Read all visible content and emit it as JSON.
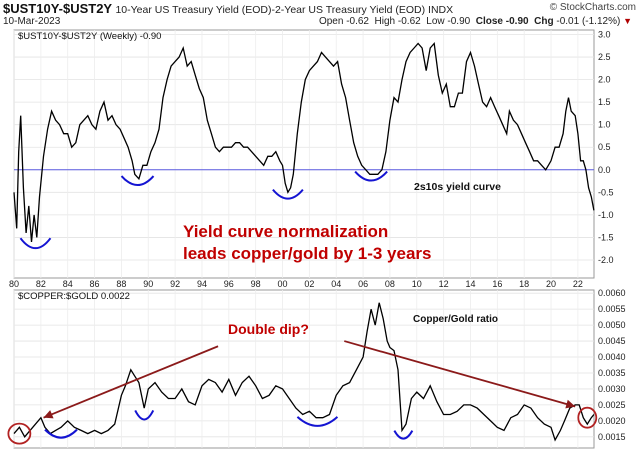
{
  "header": {
    "symbol": "$UST10Y-$UST2Y",
    "description": "10-Year US Treasury Yield (EOD)-2-Year US Treasury Yield (EOD)  INDX",
    "date": "10-Mar-2023",
    "brand": "© StockCharts.com",
    "ohlc": [
      {
        "label": "Open",
        "value": "-0.62"
      },
      {
        "label": "High",
        "value": "-0.62"
      },
      {
        "label": "Low",
        "value": "-0.90"
      },
      {
        "label": "Close",
        "value": "-0.90"
      },
      {
        "label": "Chg",
        "value": "-0.01 (-1.12%)"
      }
    ],
    "down_glyph": "▼"
  },
  "chart_data": [
    {
      "type": "line",
      "title": "$UST10Y-$UST2Y (Weekly) -0.90",
      "label": "2s10s yield curve",
      "annotation": "Yield curve normalization\nleads copper/gold by 1-3 years",
      "annotation_color": "#c00000",
      "line_color": "#000000",
      "zero_line_color": "#5a5ae0",
      "ylim": [
        -2.4,
        3.1
      ],
      "yticks": [
        "3.0",
        "2.5",
        "2.0",
        "1.5",
        "1.0",
        "0.5",
        "0.0",
        "-0.5",
        "-1.0",
        "-1.5",
        "-2.0"
      ],
      "xlim": [
        1980,
        2023.2
      ],
      "points": [
        [
          1980.0,
          -0.5
        ],
        [
          1980.2,
          -1.3
        ],
        [
          1980.35,
          0.4
        ],
        [
          1980.5,
          1.2
        ],
        [
          1980.7,
          -0.4
        ],
        [
          1980.9,
          -1.4
        ],
        [
          1981.1,
          -0.8
        ],
        [
          1981.3,
          -1.6
        ],
        [
          1981.5,
          -1.0
        ],
        [
          1981.7,
          -1.5
        ],
        [
          1981.9,
          -0.6
        ],
        [
          1982.2,
          0.3
        ],
        [
          1982.5,
          0.9
        ],
        [
          1982.8,
          1.3
        ],
        [
          1983.1,
          1.1
        ],
        [
          1983.4,
          1.0
        ],
        [
          1983.7,
          0.8
        ],
        [
          1984.0,
          0.8
        ],
        [
          1984.3,
          0.5
        ],
        [
          1984.6,
          0.6
        ],
        [
          1984.9,
          1.0
        ],
        [
          1985.2,
          1.1
        ],
        [
          1985.5,
          1.2
        ],
        [
          1985.8,
          1.0
        ],
        [
          1986.1,
          0.9
        ],
        [
          1986.4,
          1.3
        ],
        [
          1986.7,
          1.5
        ],
        [
          1987.0,
          1.1
        ],
        [
          1987.3,
          1.2
        ],
        [
          1987.6,
          1.0
        ],
        [
          1987.9,
          0.9
        ],
        [
          1988.2,
          0.7
        ],
        [
          1988.5,
          0.5
        ],
        [
          1988.8,
          0.2
        ],
        [
          1989.0,
          -0.1
        ],
        [
          1989.3,
          -0.2
        ],
        [
          1989.6,
          0.1
        ],
        [
          1989.9,
          0.1
        ],
        [
          1990.2,
          0.4
        ],
        [
          1990.5,
          0.6
        ],
        [
          1990.8,
          0.9
        ],
        [
          1991.1,
          1.6
        ],
        [
          1991.4,
          2.0
        ],
        [
          1991.7,
          2.3
        ],
        [
          1992.0,
          2.4
        ],
        [
          1992.3,
          2.5
        ],
        [
          1992.6,
          2.7
        ],
        [
          1992.9,
          2.3
        ],
        [
          1993.2,
          2.4
        ],
        [
          1993.5,
          2.1
        ],
        [
          1993.8,
          1.8
        ],
        [
          1994.1,
          1.6
        ],
        [
          1994.4,
          1.1
        ],
        [
          1994.7,
          0.8
        ],
        [
          1995.0,
          0.5
        ],
        [
          1995.3,
          0.4
        ],
        [
          1995.6,
          0.5
        ],
        [
          1995.9,
          0.5
        ],
        [
          1996.2,
          0.5
        ],
        [
          1996.5,
          0.6
        ],
        [
          1996.8,
          0.6
        ],
        [
          1997.1,
          0.5
        ],
        [
          1997.4,
          0.5
        ],
        [
          1997.7,
          0.4
        ],
        [
          1998.0,
          0.3
        ],
        [
          1998.3,
          0.2
        ],
        [
          1998.6,
          0.1
        ],
        [
          1998.9,
          0.3
        ],
        [
          1999.2,
          0.3
        ],
        [
          1999.5,
          0.4
        ],
        [
          1999.8,
          0.2
        ],
        [
          2000.0,
          0.1
        ],
        [
          2000.2,
          -0.3
        ],
        [
          2000.4,
          -0.5
        ],
        [
          2000.6,
          -0.4
        ],
        [
          2000.8,
          -0.1
        ],
        [
          2001.1,
          0.8
        ],
        [
          2001.4,
          1.5
        ],
        [
          2001.7,
          2.0
        ],
        [
          2002.0,
          2.2
        ],
        [
          2002.3,
          2.3
        ],
        [
          2002.6,
          2.4
        ],
        [
          2002.9,
          2.6
        ],
        [
          2003.2,
          2.5
        ],
        [
          2003.5,
          2.4
        ],
        [
          2003.8,
          2.3
        ],
        [
          2004.1,
          2.4
        ],
        [
          2004.4,
          1.9
        ],
        [
          2004.7,
          1.6
        ],
        [
          2005.0,
          1.1
        ],
        [
          2005.3,
          0.6
        ],
        [
          2005.6,
          0.3
        ],
        [
          2005.9,
          0.1
        ],
        [
          2006.2,
          0.0
        ],
        [
          2006.5,
          -0.1
        ],
        [
          2006.8,
          -0.1
        ],
        [
          2007.1,
          -0.1
        ],
        [
          2007.4,
          0.0
        ],
        [
          2007.7,
          0.4
        ],
        [
          2008.0,
          1.1
        ],
        [
          2008.3,
          1.6
        ],
        [
          2008.6,
          1.5
        ],
        [
          2008.9,
          2.0
        ],
        [
          2009.2,
          2.4
        ],
        [
          2009.5,
          2.6
        ],
        [
          2009.8,
          2.7
        ],
        [
          2010.1,
          2.8
        ],
        [
          2010.4,
          2.7
        ],
        [
          2010.7,
          2.2
        ],
        [
          2011.0,
          2.7
        ],
        [
          2011.3,
          2.8
        ],
        [
          2011.6,
          2.1
        ],
        [
          2011.9,
          1.7
        ],
        [
          2012.2,
          1.9
        ],
        [
          2012.5,
          1.4
        ],
        [
          2012.8,
          1.4
        ],
        [
          2013.1,
          1.7
        ],
        [
          2013.4,
          1.7
        ],
        [
          2013.7,
          2.4
        ],
        [
          2014.0,
          2.6
        ],
        [
          2014.3,
          2.3
        ],
        [
          2014.6,
          1.9
        ],
        [
          2014.9,
          1.5
        ],
        [
          2015.2,
          1.4
        ],
        [
          2015.5,
          1.6
        ],
        [
          2015.8,
          1.4
        ],
        [
          2016.1,
          1.2
        ],
        [
          2016.4,
          1.0
        ],
        [
          2016.7,
          0.8
        ],
        [
          2016.9,
          1.3
        ],
        [
          2017.2,
          1.1
        ],
        [
          2017.5,
          1.0
        ],
        [
          2017.8,
          0.8
        ],
        [
          2018.1,
          0.6
        ],
        [
          2018.4,
          0.4
        ],
        [
          2018.7,
          0.2
        ],
        [
          2019.0,
          0.2
        ],
        [
          2019.3,
          0.1
        ],
        [
          2019.6,
          0.0
        ],
        [
          2019.8,
          0.1
        ],
        [
          2020.0,
          0.2
        ],
        [
          2020.3,
          0.5
        ],
        [
          2020.6,
          0.5
        ],
        [
          2020.9,
          0.8
        ],
        [
          2021.1,
          1.3
        ],
        [
          2021.3,
          1.6
        ],
        [
          2021.5,
          1.3
        ],
        [
          2021.8,
          1.2
        ],
        [
          2022.0,
          0.8
        ],
        [
          2022.2,
          0.2
        ],
        [
          2022.4,
          0.2
        ],
        [
          2022.6,
          0.0
        ],
        [
          2022.8,
          -0.4
        ],
        [
          2023.0,
          -0.6
        ],
        [
          2023.19,
          -0.9
        ]
      ]
    },
    {
      "type": "line",
      "title": "$COPPER:$GOLD 0.0022",
      "label": "Copper/Gold ratio",
      "annotation": "Double dip?",
      "annotation_color": "#c00000",
      "line_color": "#000000",
      "ylim": [
        0.00115,
        0.0061
      ],
      "yticks": [
        "0.0060",
        "0.0055",
        "0.0050",
        "0.0045",
        "0.0040",
        "0.0035",
        "0.0030",
        "0.0025",
        "0.0020",
        "0.0015"
      ],
      "xlim": [
        1980,
        2023.2
      ],
      "xticks": [
        "80",
        "82",
        "84",
        "86",
        "88",
        "90",
        "92",
        "94",
        "96",
        "98",
        "00",
        "02",
        "04",
        "06",
        "08",
        "10",
        "12",
        "14",
        "16",
        "18",
        "20",
        "22"
      ],
      "points": [
        [
          1980.0,
          0.0016
        ],
        [
          1980.4,
          0.0018
        ],
        [
          1980.8,
          0.0015
        ],
        [
          1981.2,
          0.0017
        ],
        [
          1981.6,
          0.0019
        ],
        [
          1982.0,
          0.0021
        ],
        [
          1982.3,
          0.0018
        ],
        [
          1982.7,
          0.0016
        ],
        [
          1983.1,
          0.0017
        ],
        [
          1983.5,
          0.0018
        ],
        [
          1984.0,
          0.002
        ],
        [
          1984.5,
          0.0018
        ],
        [
          1985.0,
          0.0017
        ],
        [
          1985.5,
          0.0016
        ],
        [
          1986.0,
          0.0017
        ],
        [
          1986.5,
          0.0016
        ],
        [
          1987.0,
          0.0017
        ],
        [
          1987.5,
          0.0019
        ],
        [
          1988.0,
          0.0028
        ],
        [
          1988.3,
          0.0031
        ],
        [
          1988.7,
          0.0036
        ],
        [
          1989.0,
          0.0034
        ],
        [
          1989.3,
          0.0032
        ],
        [
          1989.7,
          0.0024
        ],
        [
          1990.0,
          0.003
        ],
        [
          1990.5,
          0.0032
        ],
        [
          1991.0,
          0.0029
        ],
        [
          1991.5,
          0.0027
        ],
        [
          1992.0,
          0.0027
        ],
        [
          1992.5,
          0.003
        ],
        [
          1993.0,
          0.0026
        ],
        [
          1993.5,
          0.0025
        ],
        [
          1994.0,
          0.0031
        ],
        [
          1994.5,
          0.0033
        ],
        [
          1995.0,
          0.0032
        ],
        [
          1995.5,
          0.0029
        ],
        [
          1996.0,
          0.0033
        ],
        [
          1996.5,
          0.0028
        ],
        [
          1997.0,
          0.0032
        ],
        [
          1997.5,
          0.0034
        ],
        [
          1998.0,
          0.0031
        ],
        [
          1998.5,
          0.0027
        ],
        [
          1999.0,
          0.0028
        ],
        [
          1999.5,
          0.0031
        ],
        [
          2000.0,
          0.003
        ],
        [
          2000.5,
          0.0027
        ],
        [
          2001.0,
          0.0024
        ],
        [
          2001.5,
          0.0022
        ],
        [
          2002.0,
          0.0023
        ],
        [
          2002.5,
          0.0021
        ],
        [
          2003.0,
          0.0021
        ],
        [
          2003.5,
          0.0022
        ],
        [
          2004.0,
          0.0028
        ],
        [
          2004.5,
          0.0031
        ],
        [
          2005.0,
          0.0032
        ],
        [
          2005.5,
          0.0036
        ],
        [
          2006.0,
          0.004
        ],
        [
          2006.3,
          0.0048
        ],
        [
          2006.6,
          0.0055
        ],
        [
          2006.9,
          0.005
        ],
        [
          2007.2,
          0.0057
        ],
        [
          2007.5,
          0.0052
        ],
        [
          2007.8,
          0.0045
        ],
        [
          2008.0,
          0.0043
        ],
        [
          2008.3,
          0.0042
        ],
        [
          2008.6,
          0.0036
        ],
        [
          2008.9,
          0.0017
        ],
        [
          2009.2,
          0.0019
        ],
        [
          2009.6,
          0.0027
        ],
        [
          2010.0,
          0.0029
        ],
        [
          2010.5,
          0.0027
        ],
        [
          2011.0,
          0.0031
        ],
        [
          2011.5,
          0.0026
        ],
        [
          2012.0,
          0.0022
        ],
        [
          2012.5,
          0.0022
        ],
        [
          2013.0,
          0.0023
        ],
        [
          2013.5,
          0.0025
        ],
        [
          2014.0,
          0.0025
        ],
        [
          2014.5,
          0.0024
        ],
        [
          2015.0,
          0.0022
        ],
        [
          2015.5,
          0.002
        ],
        [
          2016.0,
          0.0018
        ],
        [
          2016.5,
          0.0017
        ],
        [
          2017.0,
          0.0021
        ],
        [
          2017.5,
          0.0022
        ],
        [
          2018.0,
          0.0025
        ],
        [
          2018.5,
          0.0024
        ],
        [
          2019.0,
          0.0021
        ],
        [
          2019.5,
          0.0019
        ],
        [
          2020.0,
          0.0018
        ],
        [
          2020.3,
          0.0014
        ],
        [
          2020.7,
          0.0017
        ],
        [
          2021.0,
          0.002
        ],
        [
          2021.4,
          0.0024
        ],
        [
          2021.8,
          0.0025
        ],
        [
          2022.1,
          0.0025
        ],
        [
          2022.4,
          0.0021
        ],
        [
          2022.7,
          0.0019
        ],
        [
          2023.0,
          0.0021
        ],
        [
          2023.19,
          0.0022
        ]
      ]
    }
  ],
  "annotations": {
    "trendline_color": "#8b1a1a",
    "dip_arc_color": "#1414d2",
    "circle_color": "#b22222"
  }
}
